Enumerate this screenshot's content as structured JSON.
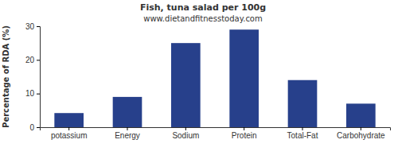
{
  "chart_data": {
    "type": "bar",
    "title": "Fish, tuna salad per 100g",
    "subtitle": "www.dietandfitnesstoday.com",
    "ylabel": "Percentage of RDA (%)",
    "categories": [
      "potassium",
      "Energy",
      "Sodium",
      "Protein",
      "Total-Fat",
      "Carbohydrate"
    ],
    "values": [
      4.2,
      9,
      25,
      29,
      14,
      7
    ],
    "color": "#27408b",
    "ylim": [
      0,
      30
    ],
    "yticks": [
      0,
      10,
      20,
      30
    ],
    "grid": false
  }
}
